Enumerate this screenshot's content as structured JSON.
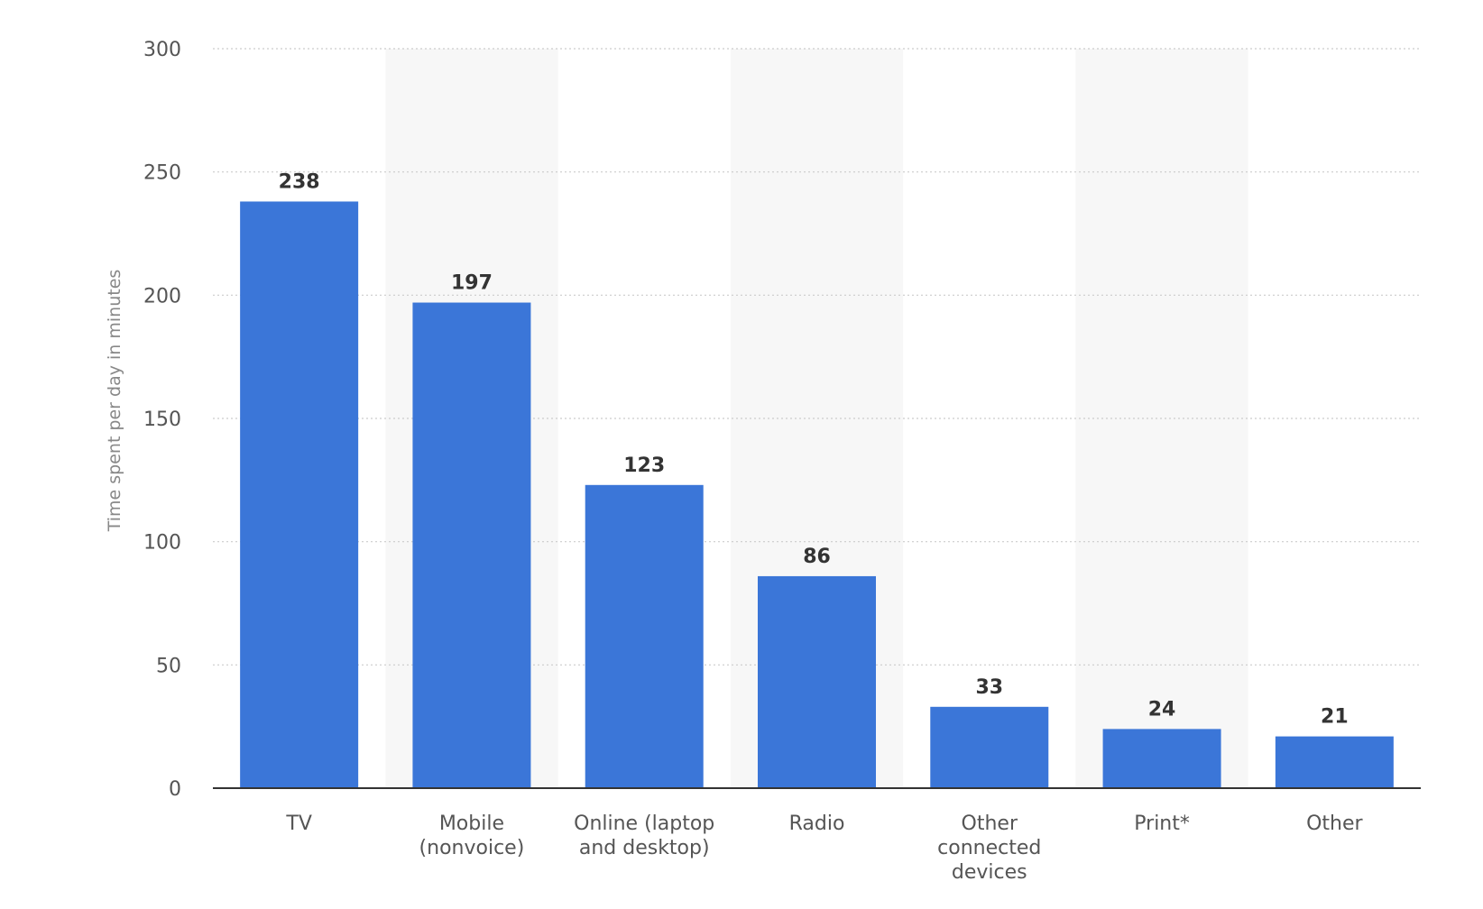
{
  "chart_data": {
    "type": "bar",
    "title": "",
    "xlabel": "",
    "ylabel": "Time spent per day in minutes",
    "ylim": [
      0,
      300
    ],
    "yticks": [
      0,
      50,
      100,
      150,
      200,
      250,
      300
    ],
    "categories": [
      "TV",
      "Mobile (nonvoice)",
      "Online (laptop and desktop)",
      "Radio",
      "Other connected devices",
      "Print*",
      "Other"
    ],
    "category_label_lines": [
      [
        "TV"
      ],
      [
        "Mobile",
        "(nonvoice)"
      ],
      [
        "Online (laptop",
        "and desktop)"
      ],
      [
        "Radio"
      ],
      [
        "Other",
        "connected",
        "devices"
      ],
      [
        "Print*"
      ],
      [
        "Other"
      ]
    ],
    "values": [
      238,
      197,
      123,
      86,
      33,
      24,
      21
    ],
    "data_labels": [
      "238",
      "197",
      "123",
      "86",
      "33",
      "24",
      "21"
    ],
    "grid": true,
    "legend": "none",
    "colors": {
      "bar": "#3b76d8",
      "grid": "#cccccc",
      "axis": "#333333",
      "band": "#f7f7f7"
    }
  }
}
